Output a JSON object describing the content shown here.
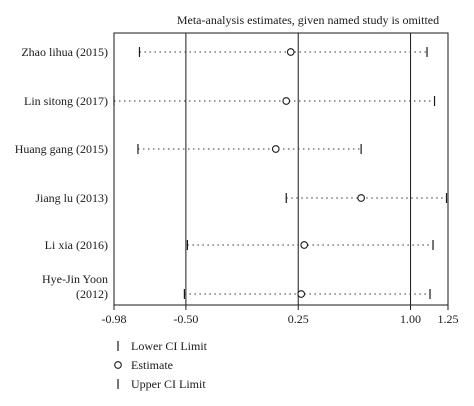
{
  "chart_data": {
    "type": "scatter",
    "title": "Meta-analysis estimates, given named study is omitted",
    "xlim": [
      -0.98,
      1.25
    ],
    "xticks": [
      {
        "value": -0.98,
        "label": "-0.98"
      },
      {
        "value": -0.5,
        "label": "-0.50"
      },
      {
        "value": 0.25,
        "label": "0.25"
      },
      {
        "value": 1.0,
        "label": "1.00"
      },
      {
        "value": 1.25,
        "label": "1.25"
      }
    ],
    "reference_lines": [
      -0.5,
      0.25,
      1.0
    ],
    "studies": [
      {
        "label": "Zhao lihua (2015)",
        "lower": -0.81,
        "estimate": 0.2,
        "upper": 1.11
      },
      {
        "label": "Lin sitong (2017)",
        "lower": -0.98,
        "estimate": 0.17,
        "upper": 1.16
      },
      {
        "label": "Huang gang (2015)",
        "lower": -0.82,
        "estimate": 0.1,
        "upper": 0.67
      },
      {
        "label": "Jiang lu (2013)",
        "lower": 0.17,
        "estimate": 0.67,
        "upper": 1.24
      },
      {
        "label": "Li xia (2016)",
        "lower": -0.49,
        "estimate": 0.29,
        "upper": 1.15
      },
      {
        "label": "Hye-Jin Yoon (2012)",
        "label_lines": [
          "Hye-Jin Yoon",
          "(2012)"
        ],
        "lower": -0.51,
        "estimate": 0.27,
        "upper": 1.13
      }
    ],
    "legend": {
      "position": "bottom-left",
      "items": [
        {
          "symbol": "tick",
          "label": "Lower CI Limit"
        },
        {
          "symbol": "circle",
          "label": "Estimate"
        },
        {
          "symbol": "tick",
          "label": "Upper CI Limit"
        }
      ]
    },
    "grid": false
  }
}
